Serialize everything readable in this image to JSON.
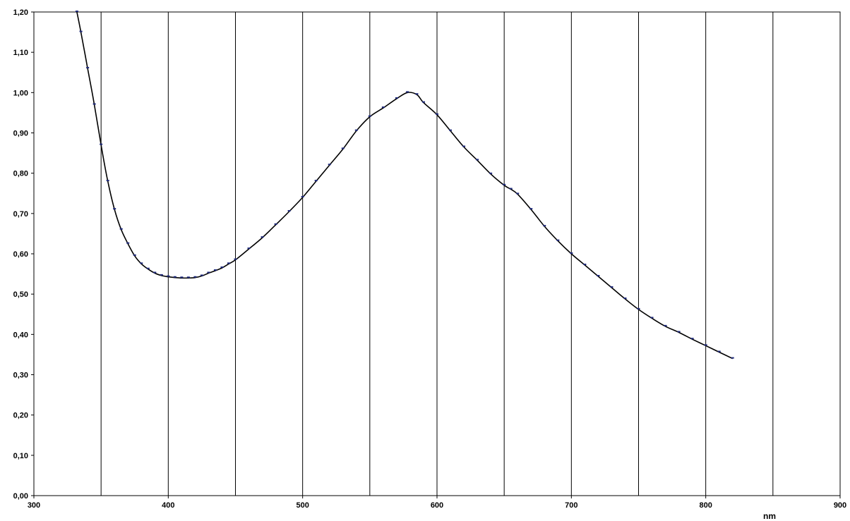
{
  "chart_data": {
    "type": "line",
    "title": "",
    "xlabel": "nm",
    "ylabel": "",
    "xlim": [
      300,
      900
    ],
    "ylim": [
      0,
      1.2
    ],
    "x_ticks": [
      300,
      400,
      500,
      600,
      700,
      800,
      900
    ],
    "x_tick_labels": [
      "300",
      "400",
      "500",
      "600",
      "700",
      "800",
      "900"
    ],
    "y_ticks": [
      0,
      0.1,
      0.2,
      0.3,
      0.4,
      0.5,
      0.6,
      0.7,
      0.8,
      0.9,
      1.0,
      1.1,
      1.2
    ],
    "y_tick_labels": [
      "0,00",
      "0,10",
      "0,20",
      "0,30",
      "0,40",
      "0,50",
      "0,60",
      "0,70",
      "0,80",
      "0,90",
      "1,00",
      "1,10",
      "1,20"
    ],
    "vertical_gridlines": [
      350,
      400,
      450,
      500,
      550,
      600,
      650,
      700,
      750,
      800,
      850
    ],
    "horizontal_grid": false,
    "legend": "none",
    "colors": {
      "curve": "#000000",
      "markers": "#1f2a7a",
      "grid": "#000000"
    },
    "series": [
      {
        "style": "smooth line with small dash markers",
        "x": [
          332,
          335,
          340,
          345,
          350,
          355,
          360,
          365,
          370,
          375,
          380,
          385,
          390,
          395,
          400,
          405,
          410,
          415,
          420,
          425,
          430,
          435,
          440,
          445,
          450,
          460,
          470,
          480,
          490,
          500,
          510,
          520,
          530,
          540,
          550,
          560,
          570,
          578,
          585,
          590,
          600,
          610,
          620,
          630,
          640,
          650,
          655,
          660,
          670,
          680,
          690,
          700,
          710,
          720,
          730,
          740,
          750,
          760,
          770,
          780,
          790,
          800,
          810,
          820
        ],
        "y": [
          1.2,
          1.15,
          1.06,
          0.97,
          0.87,
          0.78,
          0.71,
          0.66,
          0.625,
          0.595,
          0.575,
          0.562,
          0.552,
          0.546,
          0.543,
          0.541,
          0.54,
          0.54,
          0.541,
          0.545,
          0.552,
          0.558,
          0.565,
          0.575,
          0.585,
          0.612,
          0.64,
          0.672,
          0.705,
          0.74,
          0.78,
          0.82,
          0.86,
          0.905,
          0.94,
          0.962,
          0.985,
          1.0,
          0.995,
          0.975,
          0.945,
          0.905,
          0.865,
          0.832,
          0.798,
          0.77,
          0.76,
          0.748,
          0.71,
          0.668,
          0.632,
          0.6,
          0.572,
          0.544,
          0.516,
          0.488,
          0.462,
          0.44,
          0.42,
          0.405,
          0.388,
          0.372,
          0.356,
          0.34
        ]
      }
    ]
  }
}
